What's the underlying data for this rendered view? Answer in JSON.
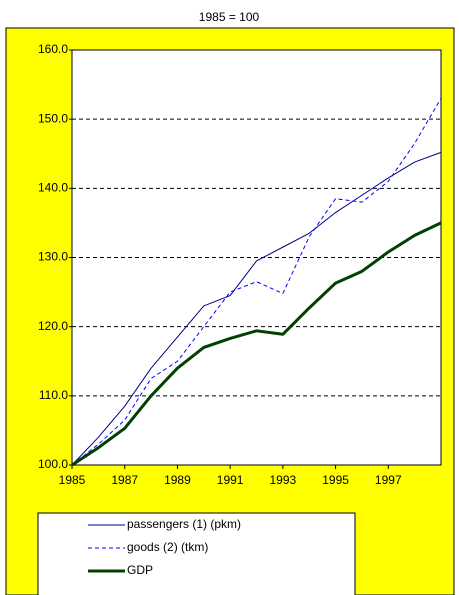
{
  "chart_data": {
    "type": "line",
    "subtitle": "1985 = 100",
    "x": [
      1985,
      1986,
      1987,
      1988,
      1989,
      1990,
      1991,
      1992,
      1993,
      1994,
      1995,
      1996,
      1997,
      1998,
      1999
    ],
    "series": [
      {
        "name": "passengers (1) (pkm)",
        "color": "#000080",
        "style": "solid",
        "width": 1,
        "values": [
          100,
          104,
          108.5,
          114,
          118.5,
          123,
          124.5,
          129.5,
          131.5,
          133.5,
          136.5,
          139,
          141.5,
          143.8,
          145.2
        ]
      },
      {
        "name": "goods (2) (tkm)",
        "color": "#0000ff",
        "style": "dashed",
        "width": 1,
        "values": [
          100,
          103,
          106.5,
          112.5,
          115,
          120,
          125,
          126.5,
          124.8,
          133,
          138.5,
          138,
          141,
          146.5,
          153
        ]
      },
      {
        "name": "GDP",
        "color": "#004000",
        "style": "solid",
        "width": 3,
        "values": [
          100,
          102.5,
          105.3,
          110,
          114,
          117,
          118.3,
          119.4,
          118.9,
          122.7,
          126.3,
          128,
          130.8,
          133.2,
          135
        ]
      }
    ],
    "xlim": [
      1985,
      1999
    ],
    "xticks": [
      1985,
      1987,
      1989,
      1991,
      1993,
      1995,
      1997
    ],
    "ylim": [
      100,
      160
    ],
    "yticks": [
      {
        "value": 100,
        "label": "100.0"
      },
      {
        "value": 110,
        "label": "110.0"
      },
      {
        "value": 120,
        "label": "120.0"
      },
      {
        "value": 130,
        "label": "130.0"
      },
      {
        "value": 140,
        "label": "140.0"
      },
      {
        "value": 150,
        "label": "150.0"
      },
      {
        "value": 160,
        "label": "160.0"
      }
    ],
    "grid": true
  }
}
